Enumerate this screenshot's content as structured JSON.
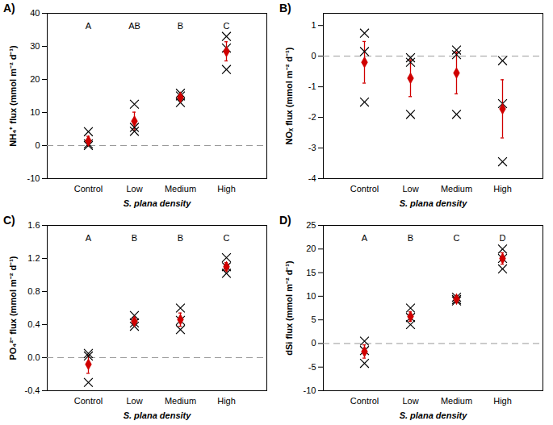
{
  "chart_data": [
    {
      "type": "scatter",
      "panel": "A)",
      "xlabel": "S. plana density",
      "ylabel": "NH₄⁺ flux (mmol m⁻² d⁻¹)",
      "categories": [
        "Control",
        "Low",
        "Medium",
        "High"
      ],
      "replicates": [
        [
          4.2,
          0.5,
          0.0
        ],
        [
          12.5,
          5.5,
          4.3
        ],
        [
          15.8,
          15.0,
          13.0
        ],
        [
          33.0,
          29.5,
          23.0
        ]
      ],
      "means": [
        1.4,
        7.4,
        14.6,
        28.5
      ],
      "errors": [
        1.4,
        2.7,
        0.8,
        2.9
      ],
      "letters": [
        "A",
        "AB",
        "B",
        "C"
      ],
      "color": "#d00000",
      "marker": "diamond",
      "reference_line": 0,
      "ylim": [
        -10,
        40
      ],
      "yticks": [
        -10,
        0,
        10,
        20,
        30,
        40
      ]
    },
    {
      "type": "scatter",
      "panel": "B)",
      "xlabel": "S. plana density",
      "ylabel": "NOₓ flux (mmol m⁻² d⁻¹)",
      "categories": [
        "Control",
        "Low",
        "Medium",
        "High"
      ],
      "replicates": [
        [
          0.75,
          0.15,
          -1.5
        ],
        [
          -0.05,
          -0.2,
          -1.9
        ],
        [
          0.2,
          0.05,
          -1.9
        ],
        [
          -0.15,
          -1.55,
          -3.45
        ]
      ],
      "means": [
        -0.2,
        -0.72,
        -0.55,
        -1.72
      ],
      "errors": [
        0.68,
        0.6,
        0.68,
        0.95
      ],
      "color": "#d00000",
      "marker": "diamond",
      "reference_line": 0,
      "ylim": [
        -4,
        1.4
      ],
      "yticks": [
        -4,
        -3,
        -2,
        -1,
        0,
        1
      ]
    },
    {
      "type": "scatter",
      "panel": "C)",
      "xlabel": "S. plana density",
      "ylabel": "PO₄²⁻ flux (mmol m⁻² d⁻¹)",
      "categories": [
        "Control",
        "Low",
        "Medium",
        "High"
      ],
      "replicates": [
        [
          0.05,
          0.02,
          -0.3
        ],
        [
          0.51,
          0.42,
          0.38
        ],
        [
          0.6,
          0.45,
          0.34
        ],
        [
          1.21,
          1.1,
          1.02
        ]
      ],
      "means": [
        -0.08,
        0.44,
        0.46,
        1.1
      ],
      "errors": [
        0.11,
        0.04,
        0.08,
        0.05
      ],
      "letters": [
        "A",
        "B",
        "B",
        "C"
      ],
      "color": "#d00000",
      "marker": "diamond",
      "reference_line": 0,
      "ylim": [
        -0.4,
        1.6
      ],
      "yticks": [
        -0.4,
        {
          "value": 0,
          "label": "0.0"
        },
        0.4,
        0.8,
        1.2,
        1.6
      ]
    },
    {
      "type": "scatter",
      "panel": "D)",
      "xlabel": "S. plana density",
      "ylabel": "dSi flux (mmol m⁻² d⁻¹)",
      "categories": [
        "Control",
        "Low",
        "Medium",
        "High"
      ],
      "replicates": [
        [
          0.5,
          -1.5,
          -4.2
        ],
        [
          7.5,
          5.5,
          4.0
        ],
        [
          9.8,
          9.3,
          9.0
        ],
        [
          20.0,
          18.0,
          15.8
        ]
      ],
      "means": [
        -1.7,
        5.7,
        9.4,
        18.0
      ],
      "errors": [
        1.4,
        1.0,
        0.25,
        1.2
      ],
      "letters": [
        "A",
        "B",
        "C",
        "D"
      ],
      "color": "#d00000",
      "marker": "diamond",
      "reference_line": 0,
      "ylim": [
        -10,
        25
      ],
      "yticks": [
        -10,
        -5,
        0,
        5,
        10,
        15,
        20,
        25
      ]
    }
  ]
}
